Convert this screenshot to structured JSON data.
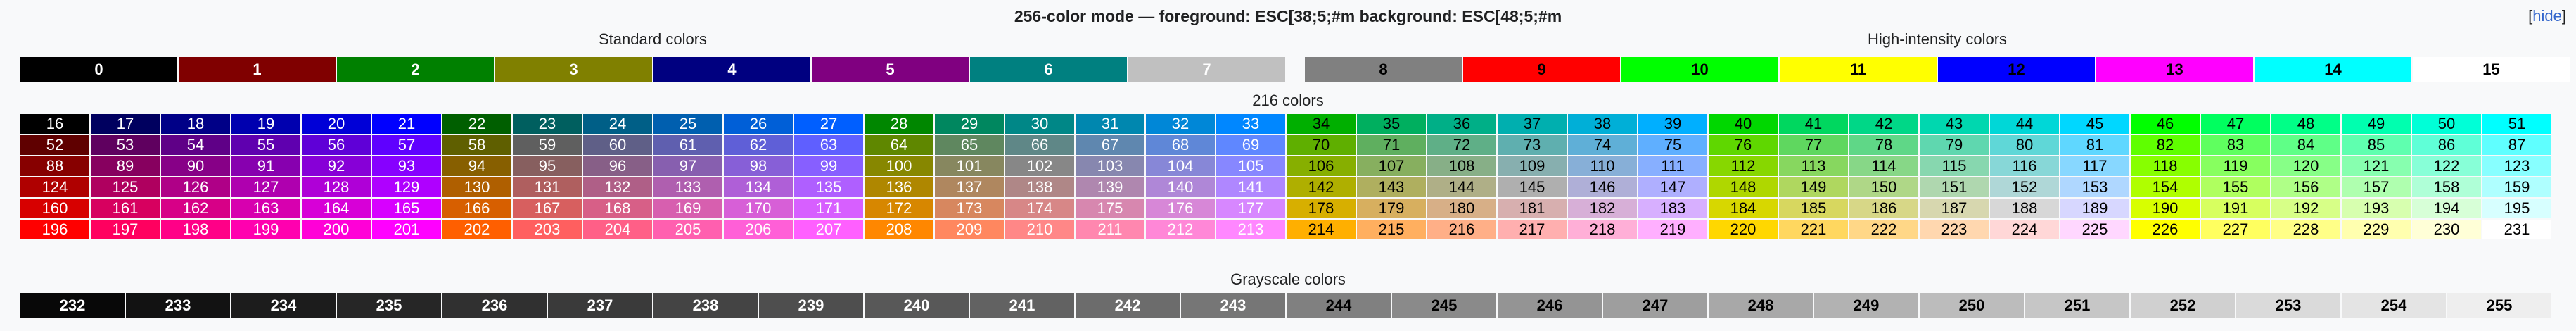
{
  "header": {
    "title": "256-color mode — foreground: ESC[38;5;#m   background: ESC[48;5;#m",
    "hide_open": "[",
    "hide_label": "hide",
    "hide_close": "]"
  },
  "sections": {
    "standard": "Standard colors",
    "high_intensity": "High-intensity colors",
    "cube": "216 colors",
    "grayscale": "Grayscale colors"
  },
  "standard_colors": [
    {
      "label": "0",
      "bg": "#000000",
      "fg": "#ffffff"
    },
    {
      "label": "1",
      "bg": "#800000",
      "fg": "#ffffff"
    },
    {
      "label": "2",
      "bg": "#008000",
      "fg": "#ffffff"
    },
    {
      "label": "3",
      "bg": "#808000",
      "fg": "#ffffff"
    },
    {
      "label": "4",
      "bg": "#000080",
      "fg": "#ffffff"
    },
    {
      "label": "5",
      "bg": "#800080",
      "fg": "#ffffff"
    },
    {
      "label": "6",
      "bg": "#008080",
      "fg": "#ffffff"
    },
    {
      "label": "7",
      "bg": "#c0c0c0",
      "fg": "#ffffff"
    }
  ],
  "high_intensity_colors": [
    {
      "label": "8",
      "bg": "#808080",
      "fg": "#000000"
    },
    {
      "label": "9",
      "bg": "#ff0000",
      "fg": "#000000"
    },
    {
      "label": "10",
      "bg": "#00ff00",
      "fg": "#000000"
    },
    {
      "label": "11",
      "bg": "#ffff00",
      "fg": "#000000"
    },
    {
      "label": "12",
      "bg": "#0000ff",
      "fg": "#000000"
    },
    {
      "label": "13",
      "bg": "#ff00ff",
      "fg": "#000000"
    },
    {
      "label": "14",
      "bg": "#00ffff",
      "fg": "#000000"
    },
    {
      "label": "15",
      "bg": "#ffffff",
      "fg": "#000000"
    }
  ],
  "cube_levels": [
    0,
    95,
    135,
    175,
    215,
    255
  ],
  "grayscale_start": 232,
  "grayscale_end": 255
}
